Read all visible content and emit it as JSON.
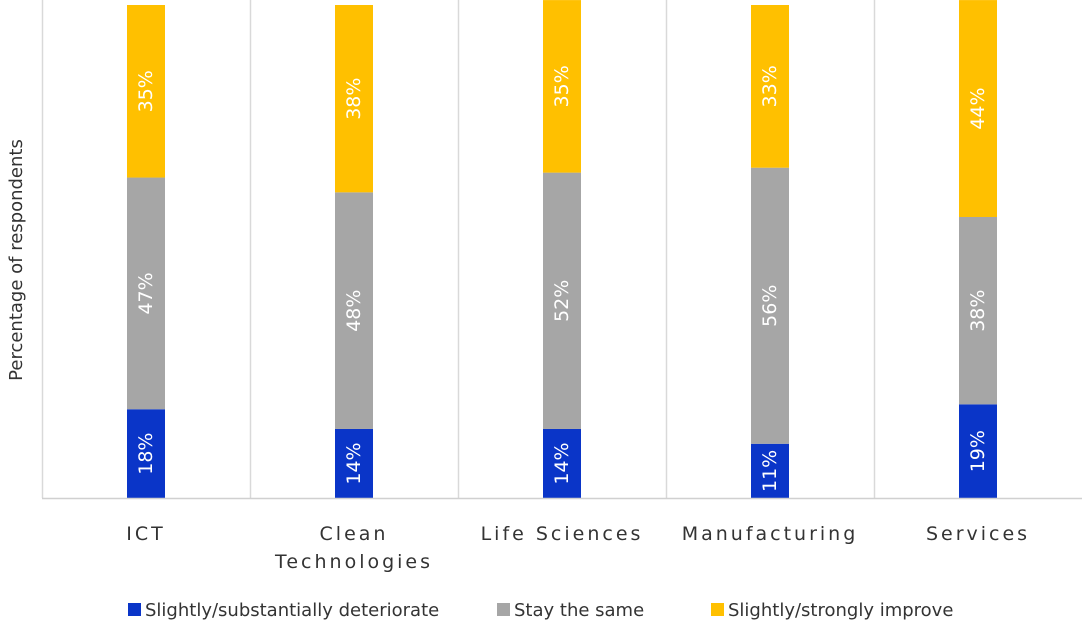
{
  "chart_data": {
    "type": "bar",
    "stacked": true,
    "ylabel": "Percentage of respondents",
    "categories": [
      [
        "ICT"
      ],
      [
        "Clean",
        "Technologies"
      ],
      [
        "Life Sciences"
      ],
      [
        "Manufacturing"
      ],
      [
        "Services"
      ]
    ],
    "series": [
      {
        "name": "Slightly/substantially deteriorate",
        "color": "#0a35c8",
        "values": [
          18,
          14,
          14,
          11,
          19
        ],
        "labels": [
          "18%",
          "14%",
          "14%",
          "11%",
          "19%"
        ]
      },
      {
        "name": "Stay the same",
        "color": "#a6a6a6",
        "values": [
          47,
          48,
          52,
          56,
          38
        ],
        "labels": [
          "47%",
          "48%",
          "52%",
          "56%",
          "38%"
        ]
      },
      {
        "name": "Slightly/strongly improve",
        "color": "#ffc000",
        "values": [
          35,
          38,
          35,
          33,
          44
        ],
        "labels": [
          "35%",
          "38%",
          "35%",
          "33%",
          "44%"
        ]
      }
    ],
    "ylim": [
      0,
      100
    ],
    "grid": "vertical separators",
    "legend_position": "bottom"
  }
}
